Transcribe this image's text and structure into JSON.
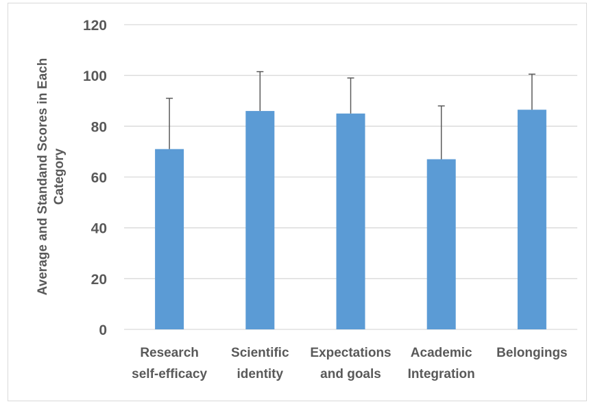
{
  "chart_data": {
    "type": "bar",
    "title": "",
    "xlabel": "",
    "ylabel_lines": [
      "Average and Standand Scores in Each",
      "Category"
    ],
    "ylim": [
      0,
      120
    ],
    "yticks": [
      0,
      20,
      40,
      60,
      80,
      100,
      120
    ],
    "categories": [
      [
        "Research",
        "self-efficacy"
      ],
      [
        "Scientific",
        "identity"
      ],
      [
        "Expectations",
        "and goals"
      ],
      [
        "Academic",
        "Integration"
      ],
      [
        "Belongings"
      ]
    ],
    "values": [
      71,
      86,
      85,
      67,
      86.5
    ],
    "error_upper": [
      91,
      101.5,
      99,
      88,
      100.5
    ],
    "grid": true,
    "legend": "none",
    "colors": {
      "bar": "#5b9bd5",
      "error": "#595959",
      "grid": "#d9d9d9",
      "text": "#595959"
    }
  }
}
